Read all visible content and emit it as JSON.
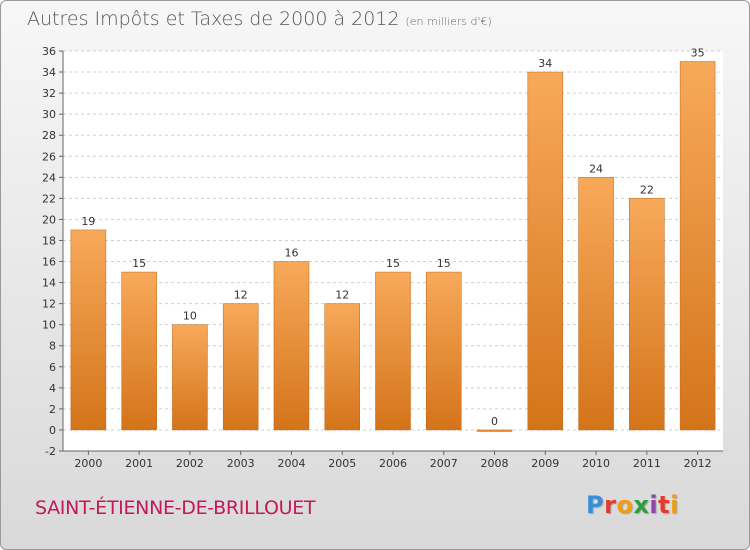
{
  "header": {
    "title": "Autres Impôts et Taxes de 2000 à 2012",
    "unit": "(en milliers d'€)"
  },
  "footer": {
    "place": "SAINT-ÉTIENNE-DE-BRILLOUET",
    "logo_letters": [
      "P",
      "r",
      "o",
      "x",
      "i",
      "t",
      "i"
    ],
    "logo_colors": [
      "#3a8fd8",
      "#e23b2e",
      "#f39c12",
      "#2e9e3a",
      "#8e44ad",
      "#e23b2e",
      "#f39c12"
    ]
  },
  "chart_data": {
    "type": "bar",
    "categories": [
      "2000",
      "2001",
      "2002",
      "2003",
      "2004",
      "2005",
      "2006",
      "2007",
      "2008",
      "2009",
      "2010",
      "2011",
      "2012"
    ],
    "values": [
      19,
      15,
      10,
      12,
      16,
      12,
      15,
      15,
      0,
      34,
      24,
      22,
      35
    ],
    "data_labels": [
      "19",
      "15",
      "10",
      "12",
      "16",
      "12",
      "15",
      "15",
      "0",
      "34",
      "24",
      "22",
      "35"
    ],
    "ylim": [
      -2,
      36
    ],
    "yticks": [
      -2,
      0,
      2,
      4,
      6,
      8,
      10,
      12,
      14,
      16,
      18,
      20,
      22,
      24,
      26,
      28,
      30,
      32,
      34,
      36
    ],
    "grid": true,
    "bar_color_light": "#f7a95a",
    "bar_color_dark": "#d4741a"
  }
}
